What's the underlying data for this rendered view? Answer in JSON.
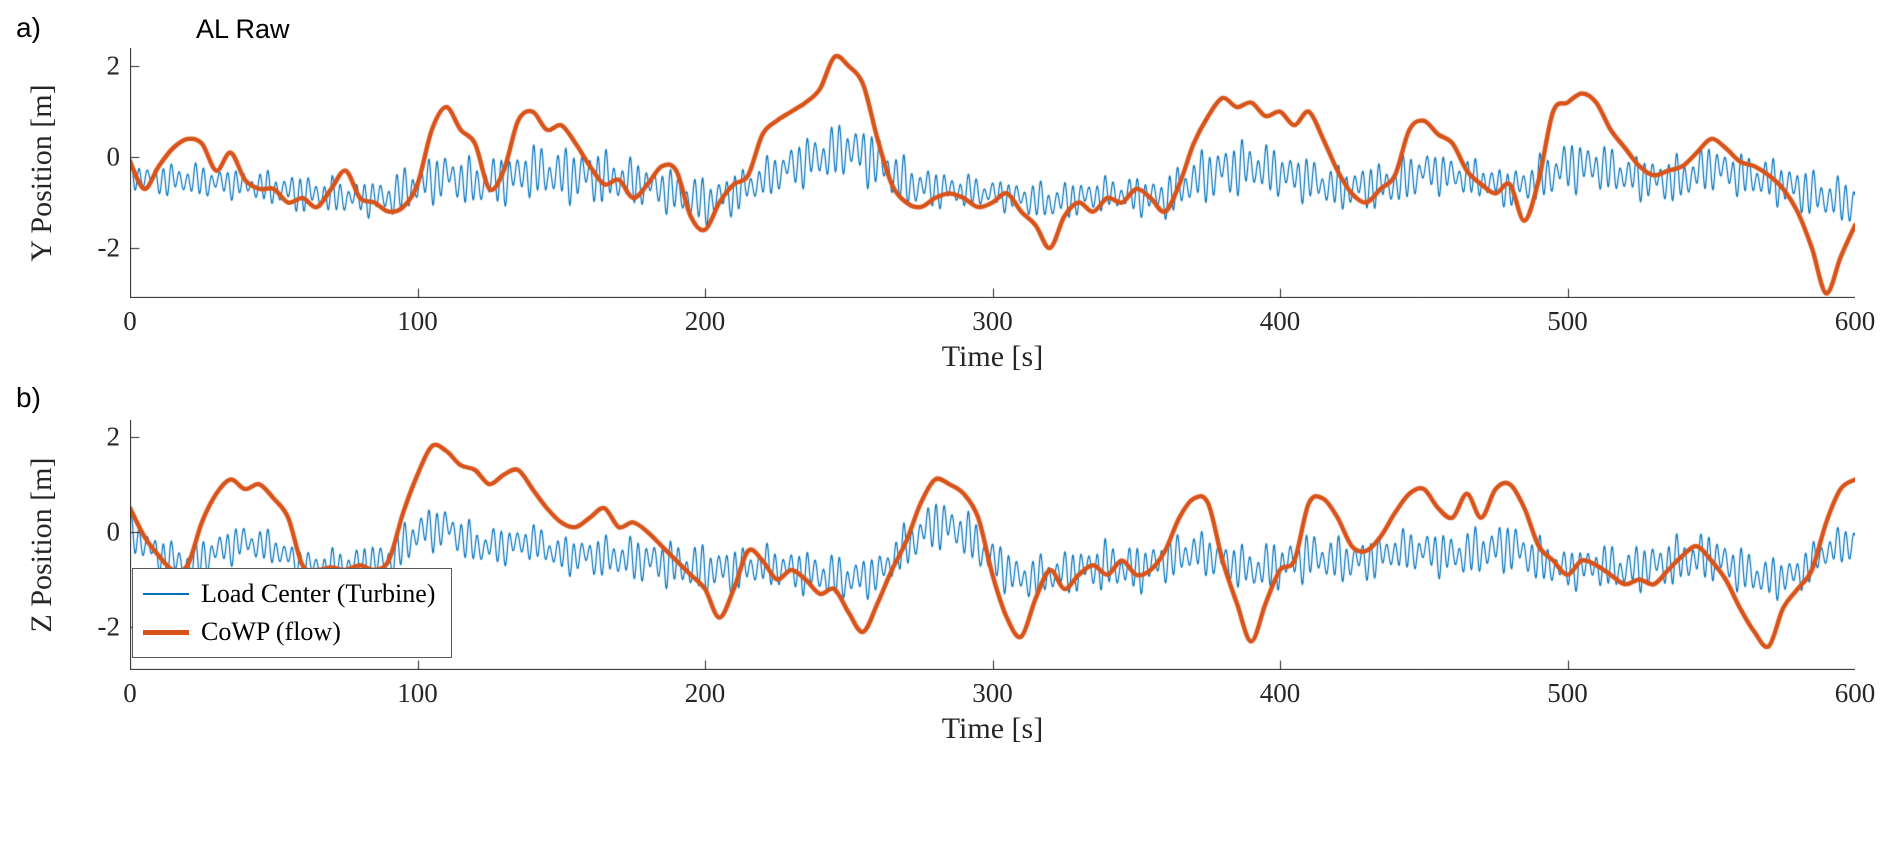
{
  "figure": {
    "panel_a_label": "a)",
    "panel_b_label": "b)"
  },
  "colors": {
    "load_center": "#0072BD",
    "cowp": "#D95319",
    "axis": "#262626",
    "background": "#FFFFFF"
  },
  "legend": {
    "items": [
      {
        "label": "Load Center (Turbine)",
        "color": "#0072BD"
      },
      {
        "label": "CoWP (flow)",
        "color": "#D95319"
      }
    ],
    "position": "bottom-left of panel b"
  },
  "chart_data": [
    {
      "type": "line",
      "panel": "a",
      "title": "AL Raw",
      "xlabel": "Time [s]",
      "ylabel": "Y Position [m]",
      "xlim": [
        0,
        600
      ],
      "ylim": [
        -3.1,
        2.4
      ],
      "x_ticks": [
        0,
        100,
        200,
        300,
        400,
        500,
        600
      ],
      "y_ticks": [
        2,
        0,
        -2
      ],
      "grid": false,
      "series": [
        {
          "name": "Load Center (Turbine)",
          "style": "thin high-frequency oscillation",
          "color": "#0072BD",
          "line_width": 1.2,
          "trend_t_step": 10,
          "trend": [
            -0.4,
            -0.5,
            -0.5,
            -0.55,
            -0.6,
            -0.7,
            -0.8,
            -0.85,
            -0.9,
            -0.9,
            -0.6,
            -0.4,
            -0.6,
            -0.5,
            -0.3,
            -0.4,
            -0.4,
            -0.5,
            -0.6,
            -0.8,
            -1.0,
            -0.8,
            -0.5,
            -0.2,
            0.0,
            0.2,
            -0.1,
            -0.6,
            -0.7,
            -0.75,
            -0.8,
            -0.9,
            -1.0,
            -0.9,
            -0.8,
            -0.85,
            -0.9,
            -0.5,
            -0.3,
            -0.2,
            -0.35,
            -0.5,
            -0.7,
            -0.65,
            -0.6,
            -0.3,
            -0.4,
            -0.5,
            -0.7,
            -0.5,
            -0.2,
            -0.2,
            -0.4,
            -0.5,
            -0.5,
            -0.2,
            -0.4,
            -0.5,
            -0.7,
            -0.9,
            -1.0
          ],
          "osc_amp_t_step": 20,
          "osc_amp": [
            0.3,
            0.35,
            0.3,
            0.4,
            0.35,
            0.5,
            0.5,
            0.55,
            0.6,
            0.45,
            0.5,
            0.4,
            0.55,
            0.6,
            0.4,
            0.3,
            0.4,
            0.35,
            0.45,
            0.6,
            0.5,
            0.45,
            0.5,
            0.4,
            0.4,
            0.55,
            0.45,
            0.5,
            0.45,
            0.5,
            0.45
          ],
          "osc_period_s": 2.8
        },
        {
          "name": "CoWP (flow)",
          "style": "thick smooth",
          "color": "#D95319",
          "line_width": 4.5,
          "t_step": 5,
          "values": [
            -0.1,
            -0.7,
            -0.2,
            0.2,
            0.4,
            0.3,
            -0.3,
            0.1,
            -0.5,
            -0.7,
            -0.7,
            -1.0,
            -0.9,
            -1.1,
            -0.7,
            -0.3,
            -0.9,
            -1.0,
            -1.2,
            -1.1,
            -0.6,
            0.6,
            1.1,
            0.6,
            0.3,
            -0.7,
            -0.3,
            0.8,
            1.0,
            0.6,
            0.7,
            0.3,
            -0.2,
            -0.6,
            -0.5,
            -0.9,
            -0.6,
            -0.2,
            -0.3,
            -1.3,
            -1.6,
            -1.0,
            -0.6,
            -0.4,
            0.5,
            0.8,
            1.0,
            1.2,
            1.5,
            2.2,
            2.0,
            1.6,
            0.4,
            -0.6,
            -1.0,
            -1.1,
            -0.9,
            -0.8,
            -0.9,
            -1.1,
            -1.0,
            -0.8,
            -1.2,
            -1.5,
            -2.0,
            -1.3,
            -1.0,
            -1.2,
            -0.9,
            -1.0,
            -0.7,
            -0.9,
            -1.2,
            -0.6,
            0.3,
            0.9,
            1.3,
            1.1,
            1.2,
            0.9,
            1.0,
            0.7,
            1.0,
            0.4,
            -0.3,
            -0.8,
            -1.0,
            -0.7,
            -0.4,
            0.6,
            0.8,
            0.5,
            0.3,
            -0.3,
            -0.6,
            -0.8,
            -0.6,
            -1.4,
            -0.5,
            1.0,
            1.2,
            1.4,
            1.2,
            0.6,
            0.2,
            -0.2,
            -0.4,
            -0.3,
            -0.2,
            0.1,
            0.4,
            0.2,
            -0.1,
            -0.2,
            -0.4,
            -0.7,
            -1.2,
            -2.0,
            -3.0,
            -2.2,
            -1.5
          ]
        }
      ]
    },
    {
      "type": "line",
      "panel": "b",
      "title": "",
      "xlabel": "Time [s]",
      "ylabel": "Z Position [m]",
      "xlim": [
        0,
        600
      ],
      "ylim": [
        -2.9,
        2.35
      ],
      "x_ticks": [
        0,
        100,
        200,
        300,
        400,
        500,
        600
      ],
      "y_ticks": [
        2,
        0,
        -2
      ],
      "grid": false,
      "series": [
        {
          "name": "Load Center (Turbine)",
          "style": "thin high-frequency oscillation",
          "color": "#0072BD",
          "line_width": 1.2,
          "trend_t_step": 10,
          "trend": [
            0.0,
            -0.5,
            -0.7,
            -0.4,
            -0.2,
            -0.35,
            -0.7,
            -0.75,
            -0.7,
            -0.6,
            0.0,
            0.1,
            -0.3,
            -0.3,
            -0.2,
            -0.5,
            -0.5,
            -0.55,
            -0.6,
            -0.7,
            -0.8,
            -0.8,
            -0.7,
            -0.8,
            -0.9,
            -1.0,
            -0.9,
            -0.3,
            0.2,
            0.0,
            -0.6,
            -1.0,
            -0.9,
            -0.8,
            -0.7,
            -0.8,
            -0.6,
            -0.4,
            -0.6,
            -0.8,
            -0.7,
            -0.5,
            -0.6,
            -0.6,
            -0.4,
            -0.4,
            -0.5,
            -0.4,
            -0.3,
            -0.6,
            -0.8,
            -0.7,
            -0.8,
            -0.7,
            -0.6,
            -0.5,
            -0.8,
            -1.0,
            -0.9,
            -0.4,
            -0.2
          ],
          "osc_amp_t_step": 20,
          "osc_amp": [
            0.35,
            0.4,
            0.35,
            0.3,
            0.4,
            0.45,
            0.4,
            0.35,
            0.4,
            0.45,
            0.5,
            0.4,
            0.45,
            0.4,
            0.5,
            0.45,
            0.4,
            0.5,
            0.45,
            0.4,
            0.5,
            0.45,
            0.4,
            0.45,
            0.5,
            0.4,
            0.45,
            0.5,
            0.45,
            0.4,
            0.35
          ],
          "osc_period_s": 2.8
        },
        {
          "name": "CoWP (flow)",
          "style": "thick smooth",
          "color": "#D95319",
          "line_width": 4.5,
          "t_step": 5,
          "values": [
            0.5,
            -0.1,
            -0.5,
            -0.8,
            -0.7,
            0.2,
            0.8,
            1.1,
            0.9,
            1.0,
            0.7,
            0.3,
            -0.7,
            -0.8,
            -0.75,
            -0.8,
            -0.7,
            -0.8,
            -0.6,
            0.4,
            1.2,
            1.8,
            1.7,
            1.4,
            1.3,
            1.0,
            1.2,
            1.3,
            0.9,
            0.5,
            0.2,
            0.1,
            0.3,
            0.5,
            0.1,
            0.2,
            0.0,
            -0.3,
            -0.6,
            -0.9,
            -1.2,
            -1.8,
            -1.2,
            -0.4,
            -0.6,
            -1.0,
            -0.8,
            -1.0,
            -1.3,
            -1.2,
            -1.7,
            -2.1,
            -1.5,
            -0.8,
            -0.2,
            0.6,
            1.1,
            1.0,
            0.8,
            0.3,
            -0.9,
            -1.8,
            -2.2,
            -1.4,
            -0.8,
            -1.2,
            -0.9,
            -0.7,
            -0.9,
            -0.6,
            -0.9,
            -0.8,
            -0.4,
            0.3,
            0.7,
            0.6,
            -0.6,
            -1.5,
            -2.3,
            -1.5,
            -0.8,
            -0.6,
            0.6,
            0.7,
            0.3,
            -0.3,
            -0.4,
            -0.1,
            0.4,
            0.8,
            0.9,
            0.5,
            0.3,
            0.8,
            0.3,
            0.9,
            1.0,
            0.5,
            -0.3,
            -0.6,
            -0.9,
            -0.6,
            -0.7,
            -0.9,
            -1.1,
            -1.0,
            -1.1,
            -0.8,
            -0.5,
            -0.3,
            -0.6,
            -1.0,
            -1.6,
            -2.1,
            -2.4,
            -1.6,
            -1.2,
            -0.8,
            0.2,
            0.9,
            1.1
          ]
        }
      ]
    }
  ]
}
